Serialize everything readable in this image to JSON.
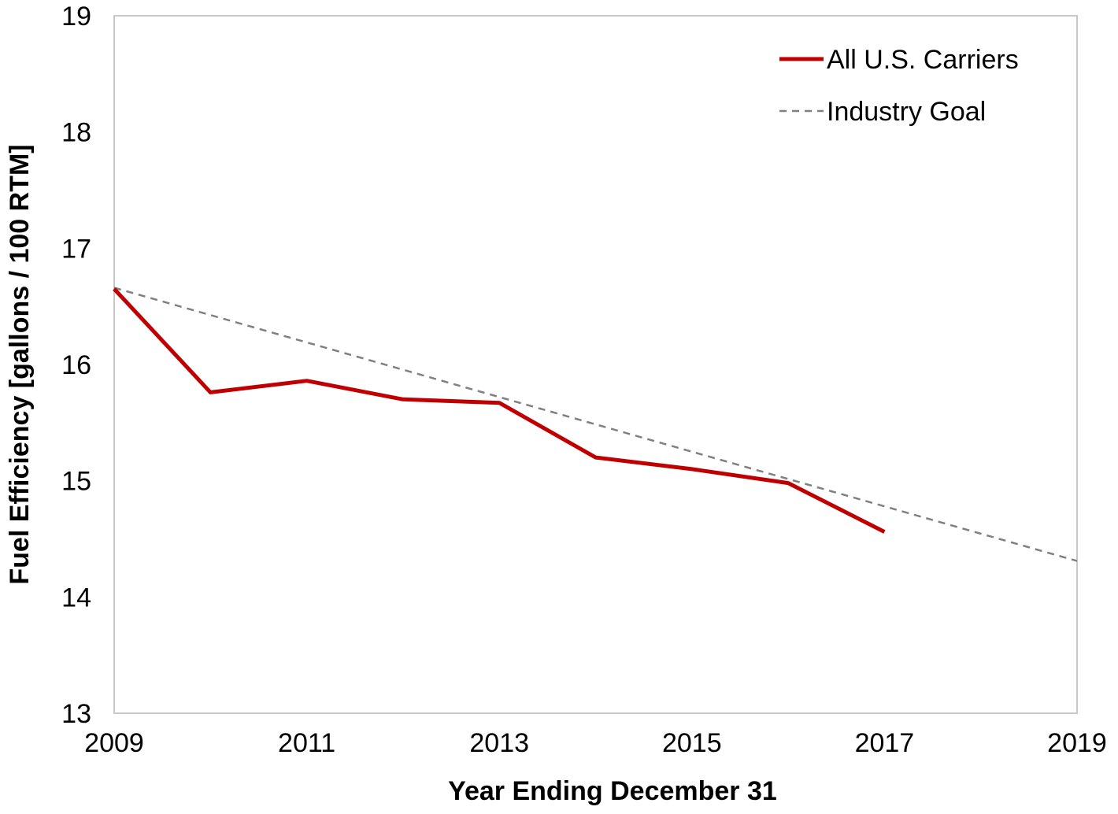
{
  "chart_data": {
    "type": "line",
    "xlabel": "Year Ending December 31",
    "ylabel": "Fuel Efficiency [gallons / 100 RTM]",
    "xlim": [
      2009,
      2019
    ],
    "ylim": [
      13,
      19
    ],
    "x_ticks": [
      2009,
      2011,
      2013,
      2015,
      2017,
      2019
    ],
    "y_ticks": [
      13,
      14,
      15,
      16,
      17,
      18,
      19
    ],
    "grid": false,
    "legend_position": "top-right",
    "series": [
      {
        "name": "All U.S. Carriers",
        "style": "solid",
        "color": "#c00000",
        "x": [
          2009,
          2010,
          2011,
          2012,
          2013,
          2014,
          2015,
          2016,
          2017
        ],
        "y": [
          16.65,
          15.76,
          15.86,
          15.7,
          15.67,
          15.2,
          15.1,
          14.98,
          14.56
        ]
      },
      {
        "name": "Industry Goal",
        "style": "dashed",
        "color": "#808080",
        "x": [
          2009,
          2019
        ],
        "y": [
          16.66,
          14.31
        ]
      }
    ]
  }
}
